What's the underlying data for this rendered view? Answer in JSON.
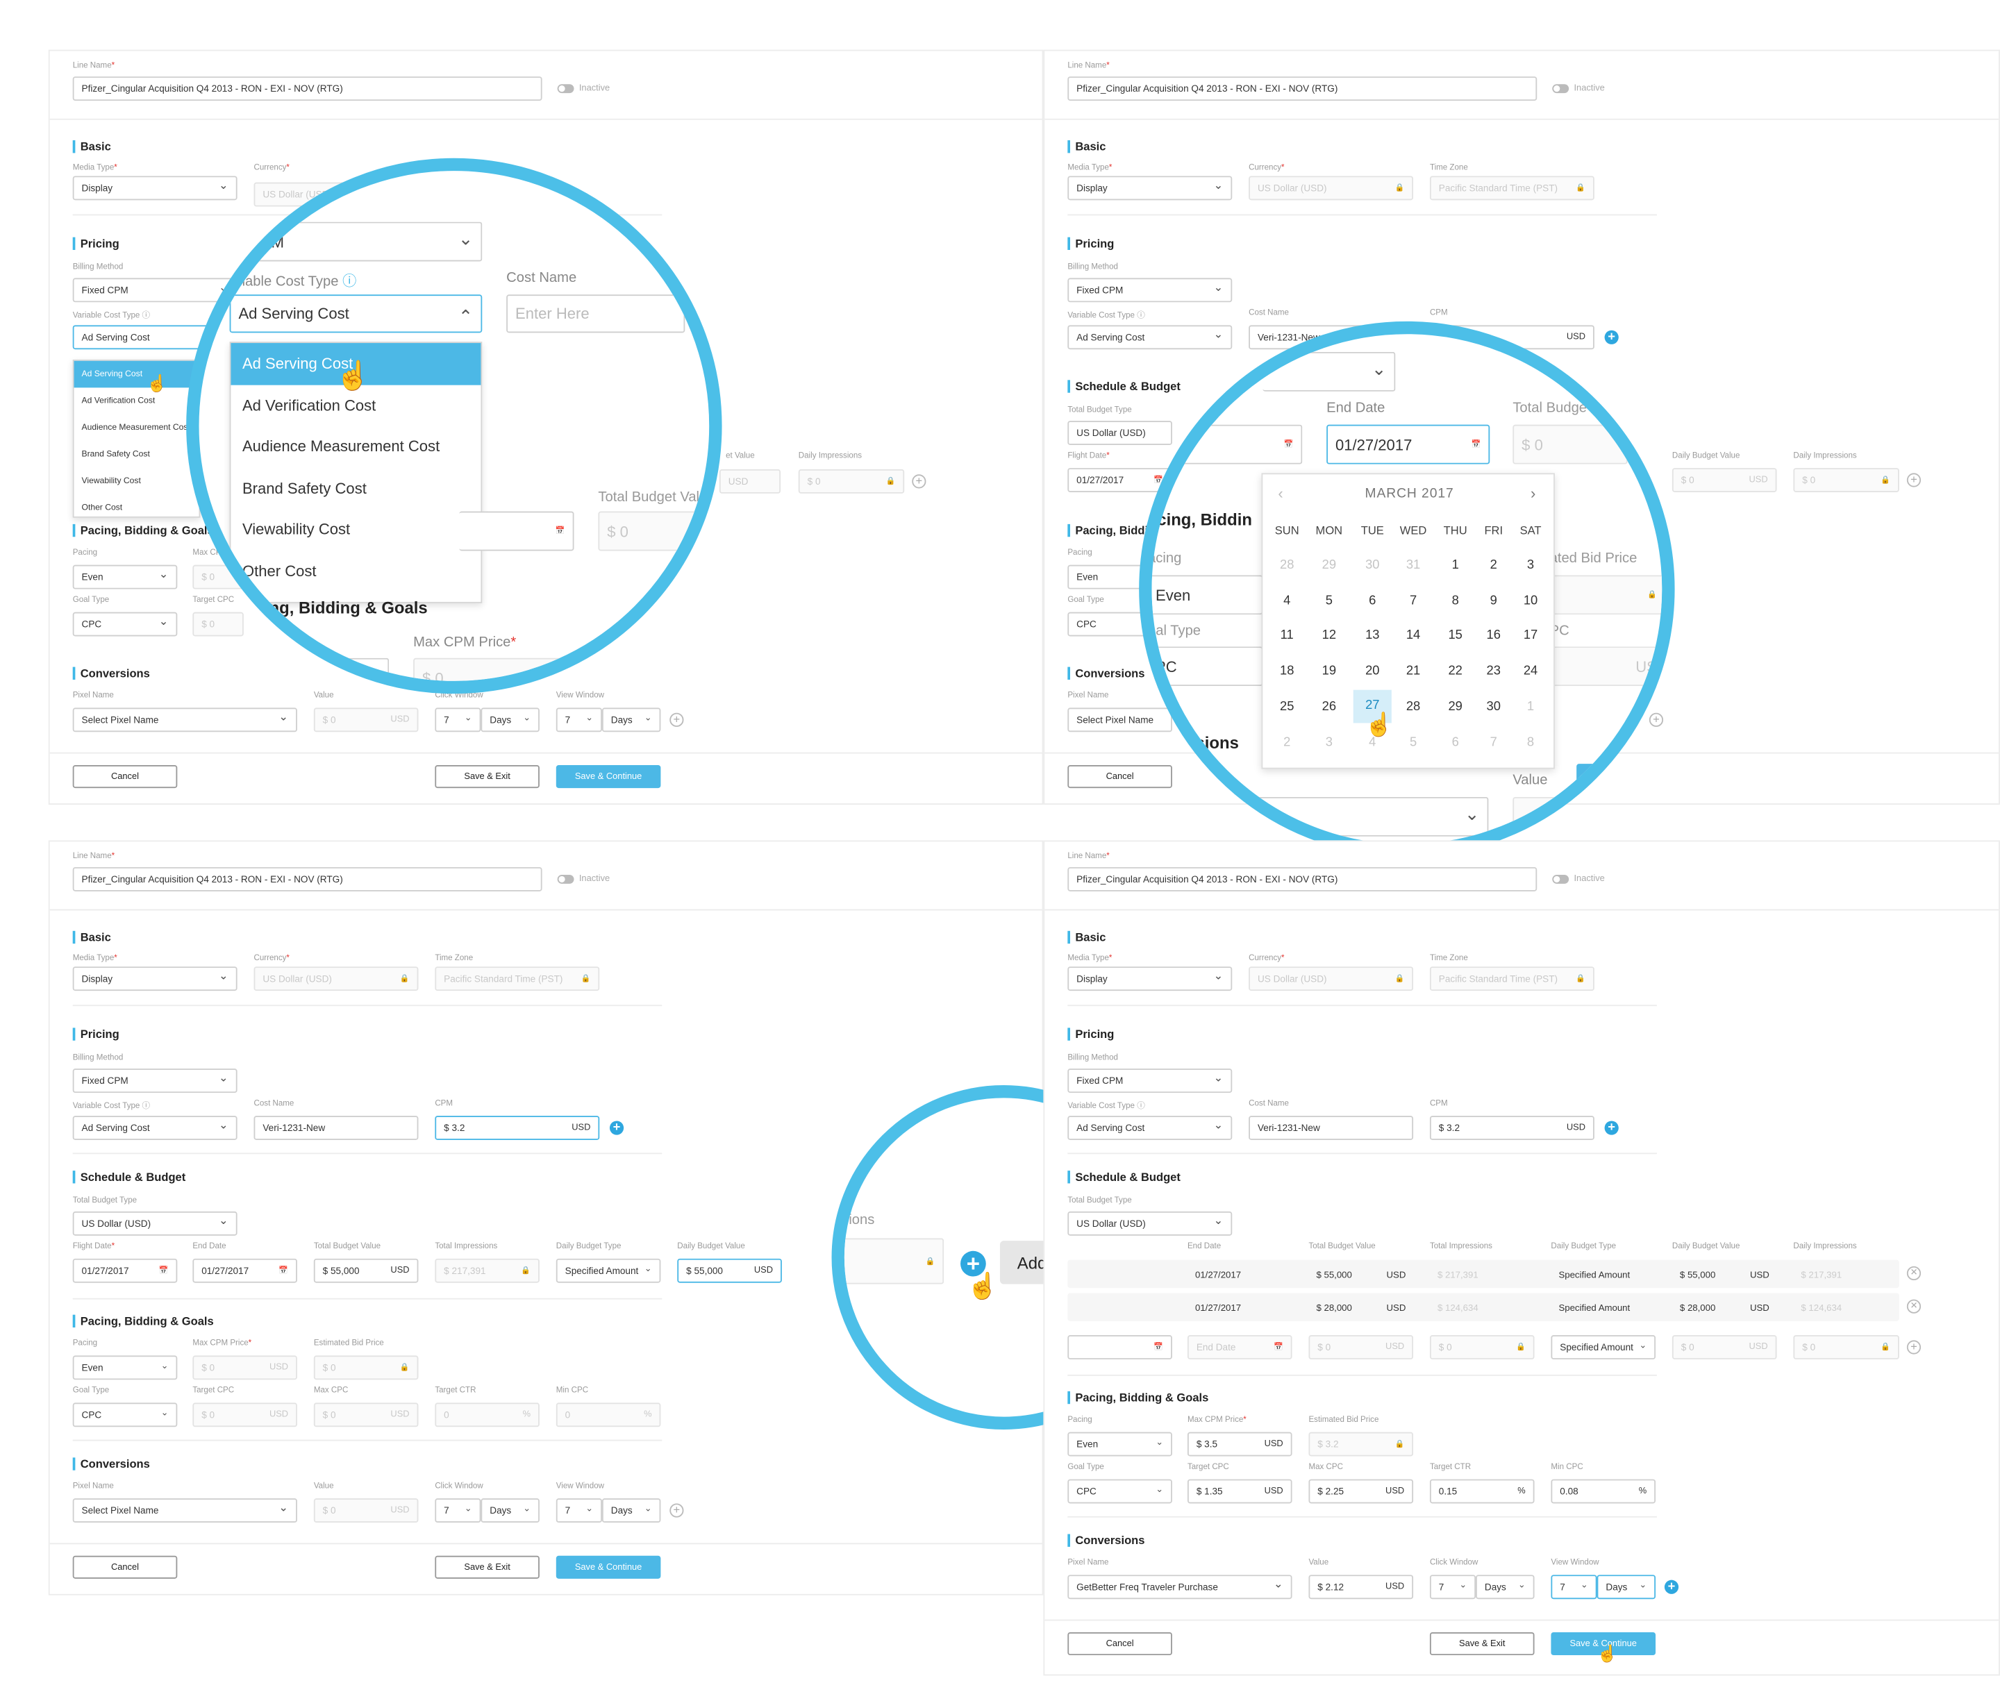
{
  "line_name_label": "Line Name",
  "line_name_value": "Pfizer_Cingular Acquisition Q4 2013 - RON - EXI - NOV (RTG)",
  "status_label": "Inactive",
  "sections": {
    "basic": "Basic",
    "pricing": "Pricing",
    "schedule": "Schedule & Budget",
    "pacing": "Pacing, Bidding & Goals",
    "conversions": "Conversions"
  },
  "labels": {
    "media_type": "Media Type",
    "currency": "Currency",
    "time_zone": "Time Zone",
    "billing_method": "Billing Method",
    "variable_cost_type": "Variable Cost Type",
    "cost_name": "Cost Name",
    "cpm": "CPM",
    "total_budget_type": "Total Budget Type",
    "flight_date": "Flight Date",
    "end_date": "End Date",
    "total_budget_value": "Total Budget Value",
    "total_impressions": "Total Impressions",
    "daily_budget_type": "Daily Budget Type",
    "daily_budget_value": "Daily Budget Value",
    "daily_impressions": "Daily Impressions",
    "pacing": "Pacing",
    "max_cpm_price": "Max CPM Price",
    "estimated_bid_price": "Estimated Bid Price",
    "goal_type": "Goal Type",
    "target_cpc": "Target CPC",
    "max_cpc": "Max CPC",
    "target_ctr": "Target CTR",
    "min_cpc": "Min CPC",
    "pixel_name": "Pixel Name",
    "value": "Value",
    "click_window": "Click Window",
    "view_window": "View Window"
  },
  "values": {
    "media_type": "Display",
    "currency": "US Dollar (USD)",
    "time_zone": "Pacific Standard Time (PST)",
    "billing_method": "Fixed CPM",
    "variable_cost_type": "Ad Serving Cost",
    "cost_name": "Veri-1231-New",
    "cost_name_placeholder": "Enter Here",
    "cpm": "$ 3.2",
    "total_budget_type": "US Dollar (USD)",
    "flight_date": "01/27/2017",
    "end_date": "01/27/2017",
    "end_date_placeholder": "End Date",
    "total_budget_value": "$ 55,000",
    "total_impressions": "$ 217,391",
    "daily_budget_type": "Specified Amount",
    "daily_budget_value": "$ 55,000",
    "pacing": "Even",
    "goal_type": "CPC",
    "pixel_placeholder": "Select Pixel Name",
    "window_number": "7",
    "window_unit": "Days",
    "usd": "USD",
    "zero": "$ 0",
    "zero_pct": "0",
    "pct": "%"
  },
  "cost_types": [
    "Ad Serving Cost",
    "Ad Verification Cost",
    "Audience Measurement Cost",
    "Brand Safety Cost",
    "Viewability Cost",
    "Other Cost"
  ],
  "schedule_rows": [
    {
      "start": "01/27/2017",
      "end": "01/27/2017",
      "budget": "$ 55,000",
      "impressions": "$ 217,391",
      "daily_type": "Specified Amount",
      "daily_value": "$ 55,000",
      "daily_impressions": "$ 217,391"
    },
    {
      "start": "01/27/2017",
      "end": "01/27/2017",
      "budget": "$ 28,000",
      "impressions": "$ 124,634",
      "daily_type": "Specified Amount",
      "daily_value": "$ 28,000",
      "daily_impressions": "$ 124,634"
    }
  ],
  "final": {
    "max_cpm": "$ 3.5",
    "est_bid": "$ 3.2",
    "target_cpc": "$ 1.35",
    "max_cpc": "$ 2.25",
    "target_ctr": "0.15",
    "min_cpc": "0.08",
    "pixel": "GetBetter Freq Traveler Purchase",
    "value": "$ 2.12"
  },
  "buttons": {
    "cancel": "Cancel",
    "save_exit": "Save & Exit",
    "save_continue": "Save & Continue",
    "add_schedule": "Add Schedule"
  },
  "calendar": {
    "title": "MARCH 2017",
    "weekdays": [
      "SUN",
      "MON",
      "TUE",
      "WED",
      "THU",
      "FRI",
      "SAT"
    ],
    "days": [
      [
        "28",
        "29",
        "30",
        "31",
        "1",
        "2",
        "3"
      ],
      [
        "4",
        "5",
        "6",
        "7",
        "8",
        "9",
        "10"
      ],
      [
        "11",
        "12",
        "13",
        "14",
        "15",
        "16",
        "17"
      ],
      [
        "18",
        "19",
        "20",
        "21",
        "22",
        "23",
        "24"
      ],
      [
        "25",
        "26",
        "27",
        "28",
        "29",
        "30",
        "1"
      ],
      [
        "2",
        "3",
        "4",
        "5",
        "6",
        "7",
        "8"
      ]
    ],
    "selected": "27",
    "date_value": "01/27/2017",
    "date_partial": "2017"
  },
  "zoom_texts": {
    "cpm_partial": "d CPM",
    "vct_partial": "ariable Cost Type",
    "pacing_partial": "ng, Bidding & Goals",
    "max_cpm_price": "Max CPM Price",
    "total_budget_partial": "Total Budge",
    "total_budget_value_partial": "Total Budget Val",
    "pacing_bid_partial": "acing, Biddin",
    "ated_bid": "ated Bid Price",
    "acing": "acing",
    "even": "Even",
    "oal_type": "oal Type",
    "pc": "PC",
    "ersions": "ersions",
    "sions": "sions",
    "continue": "ontinue",
    "value": "Value",
    "us": "US",
    "cpc_partial": "CPC",
    "get": "get",
    "cost_partial": "Cost",
    "et_value": "et Value",
    "dget": "dget",
    "g_bidding": "g, Bidding & Goals"
  }
}
